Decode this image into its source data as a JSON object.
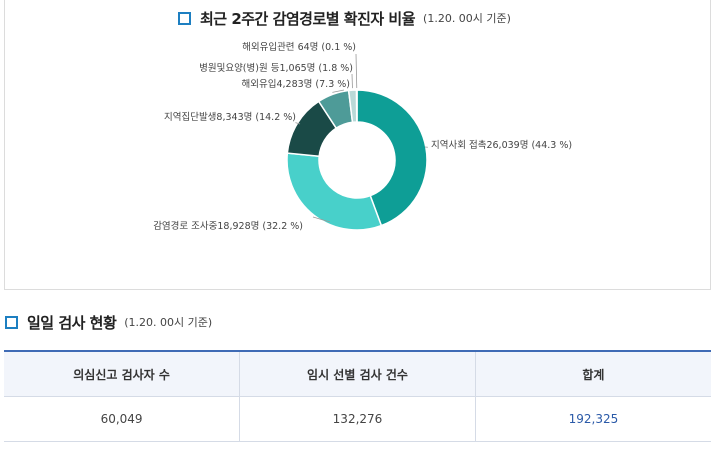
{
  "chart_title": "최근 2주간 감염경로별 확진자 비율",
  "chart_note": "(1.20. 00시 기준)",
  "chart_data": {
    "type": "pie",
    "variant": "donut",
    "categories": [
      "지역사회 접촉",
      "감염경로 조사중",
      "지역집단발생",
      "해외유입",
      "병원및요양(병)원 등",
      "해외유입관련"
    ],
    "series": [
      {
        "values": [
          44.3,
          32.2,
          14.2,
          7.3,
          1.8,
          0.1
        ],
        "counts": [
          "26,039명",
          "18,928명",
          "8,343명",
          "4,283명",
          "1,065명",
          "64명"
        ]
      }
    ],
    "labels": [
      "지역사회 접촉26,039명 (44.3 %)",
      "감염경로 조사중18,928명 (32.2 %)",
      "지역집단발생8,343명 (14.2 %)",
      "해외유입4,283명 (7.3 %)",
      "병원및요양(병)원 등1,065명 (1.8 %)",
      "해외유입관련 64명 (0.1 %)"
    ],
    "colors": [
      "#0e9e96",
      "#48d0ca",
      "#1a4a47",
      "#4e9b98",
      "#b9d9d7",
      "#8ab84a"
    ]
  },
  "section_title": "일일 검사 현황",
  "section_note": "(1.20. 00시 기준)",
  "table": {
    "headers": [
      "의심신고 검사자 수",
      "임시 선별 검사 건수",
      "합계"
    ],
    "rows": [
      [
        "60,049",
        "132,276",
        "192,325"
      ]
    ]
  },
  "colors": {
    "accent": "#1d7fc1",
    "table_border": "#3f6bb5",
    "total_text": "#2b5aa8"
  }
}
